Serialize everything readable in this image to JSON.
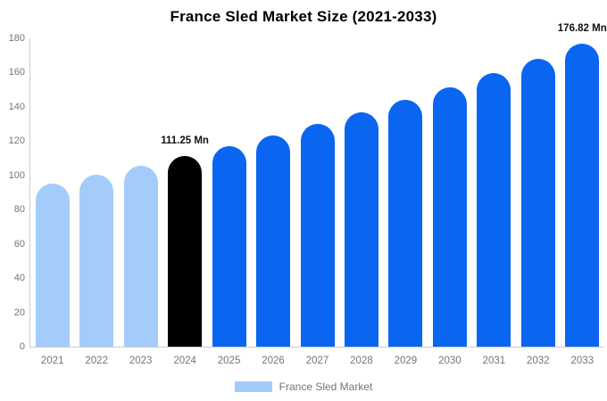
{
  "chart_data": {
    "type": "bar",
    "title": "France Sled Market Size (2021-2033)",
    "categories": [
      "2021",
      "2022",
      "2023",
      "2024",
      "2025",
      "2026",
      "2027",
      "2028",
      "2029",
      "2030",
      "2031",
      "2032",
      "2033"
    ],
    "series": [
      {
        "name": "France Sled Market",
        "values": [
          95.32,
          100.36,
          105.66,
          111.25,
          117.13,
          123.31,
          129.83,
          136.69,
          143.92,
          151.52,
          159.53,
          167.96,
          176.82
        ]
      }
    ],
    "ylabel": "",
    "xlabel": "",
    "ylim": [
      0,
      180
    ],
    "yticks": [
      0,
      20,
      40,
      60,
      80,
      100,
      120,
      140,
      160,
      180
    ],
    "grid": false,
    "legend_position": "bottom",
    "annotations": [
      {
        "category": "2024",
        "label": "111.25 Mn"
      },
      {
        "category": "2033",
        "label": "176.82 Mn"
      }
    ],
    "bar_colors": [
      "#A3CCFA",
      "#A3CCFA",
      "#A3CCFA",
      "#000000",
      "#0A66F0",
      "#0A66F0",
      "#0A66F0",
      "#0A66F0",
      "#0A66F0",
      "#0A66F0",
      "#0A66F0",
      "#0A66F0",
      "#0A66F0"
    ]
  },
  "legend": {
    "label": "France Sled Market",
    "swatch_color": "#A3CCFA"
  },
  "colors": {
    "light_blue": "#A3CCFA",
    "primary_blue": "#0A66F0",
    "highlight_black": "#000000",
    "axis_line": "#cccccc",
    "tick_text": "#757575",
    "title_text": "#000000"
  }
}
